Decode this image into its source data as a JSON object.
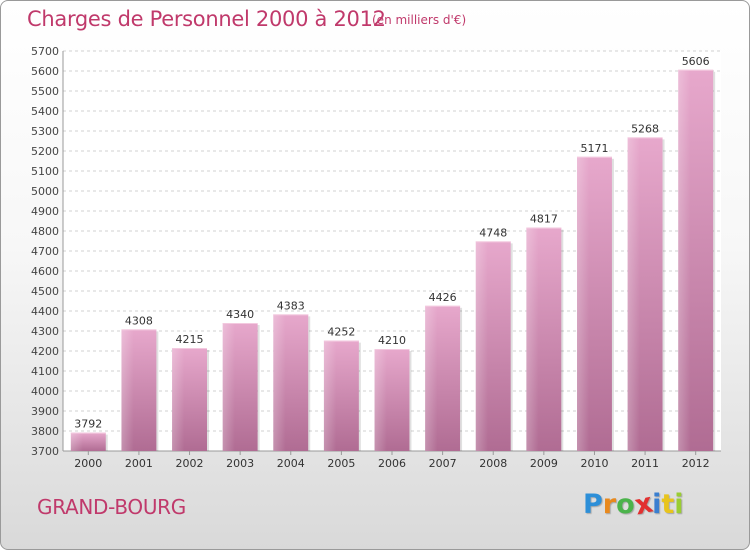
{
  "header": {
    "title": "Charges de Personnel 2000 à 2012",
    "subtitle": "(en milliers d'€)"
  },
  "footer": {
    "commune": "GRAND-BOURG",
    "logo": {
      "letters": [
        "P",
        "r",
        "o",
        "x",
        "i",
        "t",
        "i"
      ],
      "colors": [
        "#2d8fd8",
        "#e8891d",
        "#4bb34b",
        "#e23030",
        "#3a7fd0",
        "#e8c41d",
        "#9acd32"
      ]
    }
  },
  "chart_data": {
    "type": "bar",
    "title": "Charges de Personnel 2000 à 2012",
    "subtitle": "(en milliers d'€)",
    "categories": [
      "2000",
      "2001",
      "2002",
      "2003",
      "2004",
      "2005",
      "2006",
      "2007",
      "2008",
      "2009",
      "2010",
      "2011",
      "2012"
    ],
    "values": [
      3792,
      4308,
      4215,
      4340,
      4383,
      4252,
      4210,
      4426,
      4748,
      4817,
      5171,
      5268,
      5606
    ],
    "ylim": [
      3700,
      5700
    ],
    "yticks": [
      3700,
      3800,
      3900,
      4000,
      4100,
      4200,
      4300,
      4400,
      4500,
      4600,
      4700,
      4800,
      4900,
      5000,
      5100,
      5200,
      5300,
      5400,
      5500,
      5600,
      5700
    ],
    "grid": true,
    "bar_color": "#d784b0",
    "text_color": "#c0396b"
  }
}
